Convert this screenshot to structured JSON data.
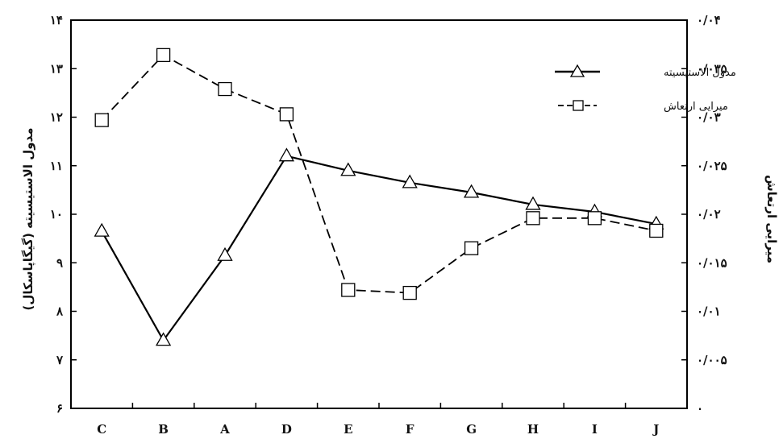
{
  "chart_data": {
    "type": "line",
    "categories": [
      "C",
      "B",
      "A",
      "D",
      "E",
      "F",
      "G",
      "H",
      "I",
      "J"
    ],
    "left_axis": {
      "label": "مدول الاستیسیته (گیگاپاسکال)",
      "ticks": [
        "۶",
        "۷",
        "۸",
        "۹",
        "۱۰",
        "۱۱",
        "۱۲",
        "۱۳",
        "۱۴"
      ],
      "ylim": [
        6,
        14
      ]
    },
    "right_axis": {
      "label": "میرایی ارتعاش",
      "ticks": [
        "۰",
        "۰/۰۰۵",
        "۰/۰۱",
        "۰/۰۱۵",
        "۰/۰۲",
        "۰/۰۲۵",
        "۰/۰۳",
        "۰/۰۳۵",
        "۰/۰۴"
      ],
      "ylim": [
        0,
        0.04
      ]
    },
    "series": [
      {
        "name": "مدول الاستیسیته",
        "axis": "left",
        "marker": "triangle",
        "line_style": "solid",
        "values": [
          9.65,
          7.4,
          9.15,
          11.2,
          10.9,
          10.65,
          10.45,
          10.2,
          10.05,
          9.8
        ]
      },
      {
        "name": "میرایی ارتعاش",
        "axis": "right",
        "marker": "square",
        "line_style": "dashed",
        "values": [
          0.0297,
          0.0364,
          0.0329,
          0.0303,
          0.0122,
          0.0119,
          0.0165,
          0.0196,
          0.0196,
          0.0183
        ]
      }
    ],
    "legend": {
      "position": "top-right",
      "items": [
        {
          "label": "مدول الاستیسیته",
          "marker": "triangle",
          "line_style": "solid"
        },
        {
          "label": "میرایی ارتعاش",
          "marker": "square",
          "line_style": "dashed"
        }
      ]
    },
    "grid": false
  }
}
